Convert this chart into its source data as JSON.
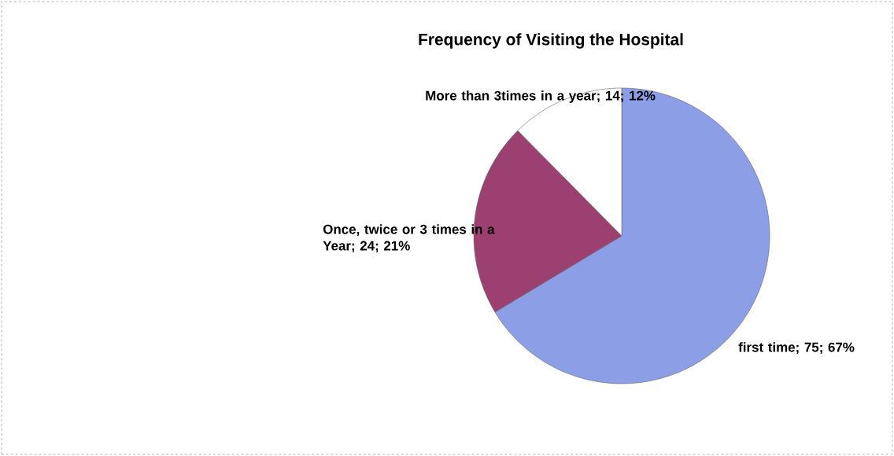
{
  "chart_data": {
    "type": "pie",
    "title": "Frequency of Visiting the Hospital",
    "categories": [
      "first time",
      "Once, twice or 3 times in a Year",
      "More than 3times in a year"
    ],
    "values": [
      75,
      24,
      14
    ],
    "colors": [
      "#8c9ee6",
      "#9b4070",
      "#ffffff"
    ],
    "value_labels": [
      "; 75; 67%",
      "; 24; 21%",
      "; 14; 12%"
    ]
  }
}
